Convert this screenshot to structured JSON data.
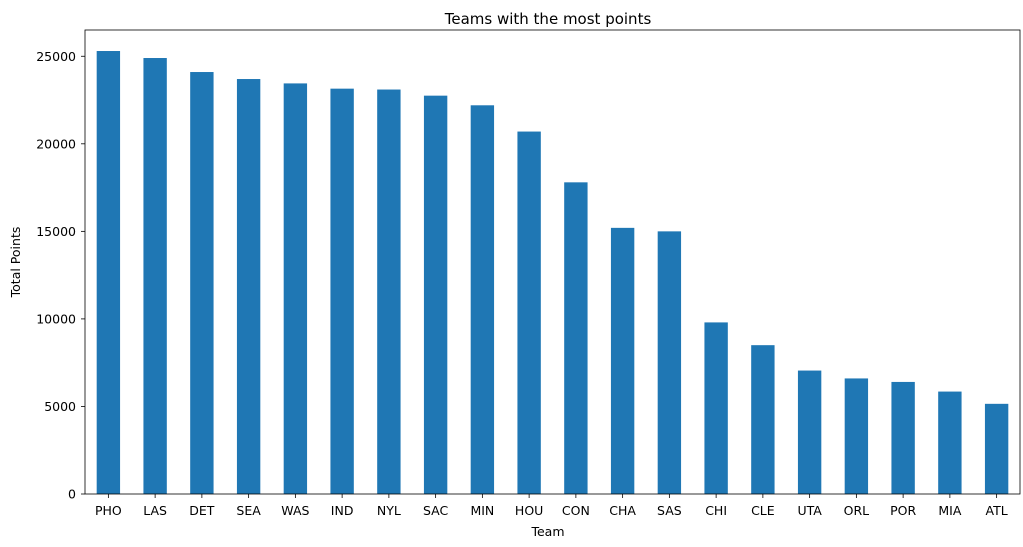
{
  "chart_data": {
    "type": "bar",
    "title": "Teams with the most points",
    "xlabel": "Team",
    "ylabel": "Total Points",
    "categories": [
      "PHO",
      "LAS",
      "DET",
      "SEA",
      "WAS",
      "IND",
      "NYL",
      "SAC",
      "MIN",
      "HOU",
      "CON",
      "CHA",
      "SAS",
      "CHI",
      "CLE",
      "UTA",
      "ORL",
      "POR",
      "MIA",
      "ATL"
    ],
    "values": [
      25300,
      24900,
      24100,
      23700,
      23450,
      23150,
      23100,
      22750,
      22200,
      20700,
      17800,
      15200,
      15000,
      9800,
      8500,
      7050,
      6600,
      6400,
      5850,
      5150
    ],
    "ylim": [
      0,
      26500
    ],
    "yticks": [
      0,
      5000,
      10000,
      15000,
      20000,
      25000
    ],
    "grid": false,
    "legend": "none",
    "bar_color": "#1f77b4"
  }
}
